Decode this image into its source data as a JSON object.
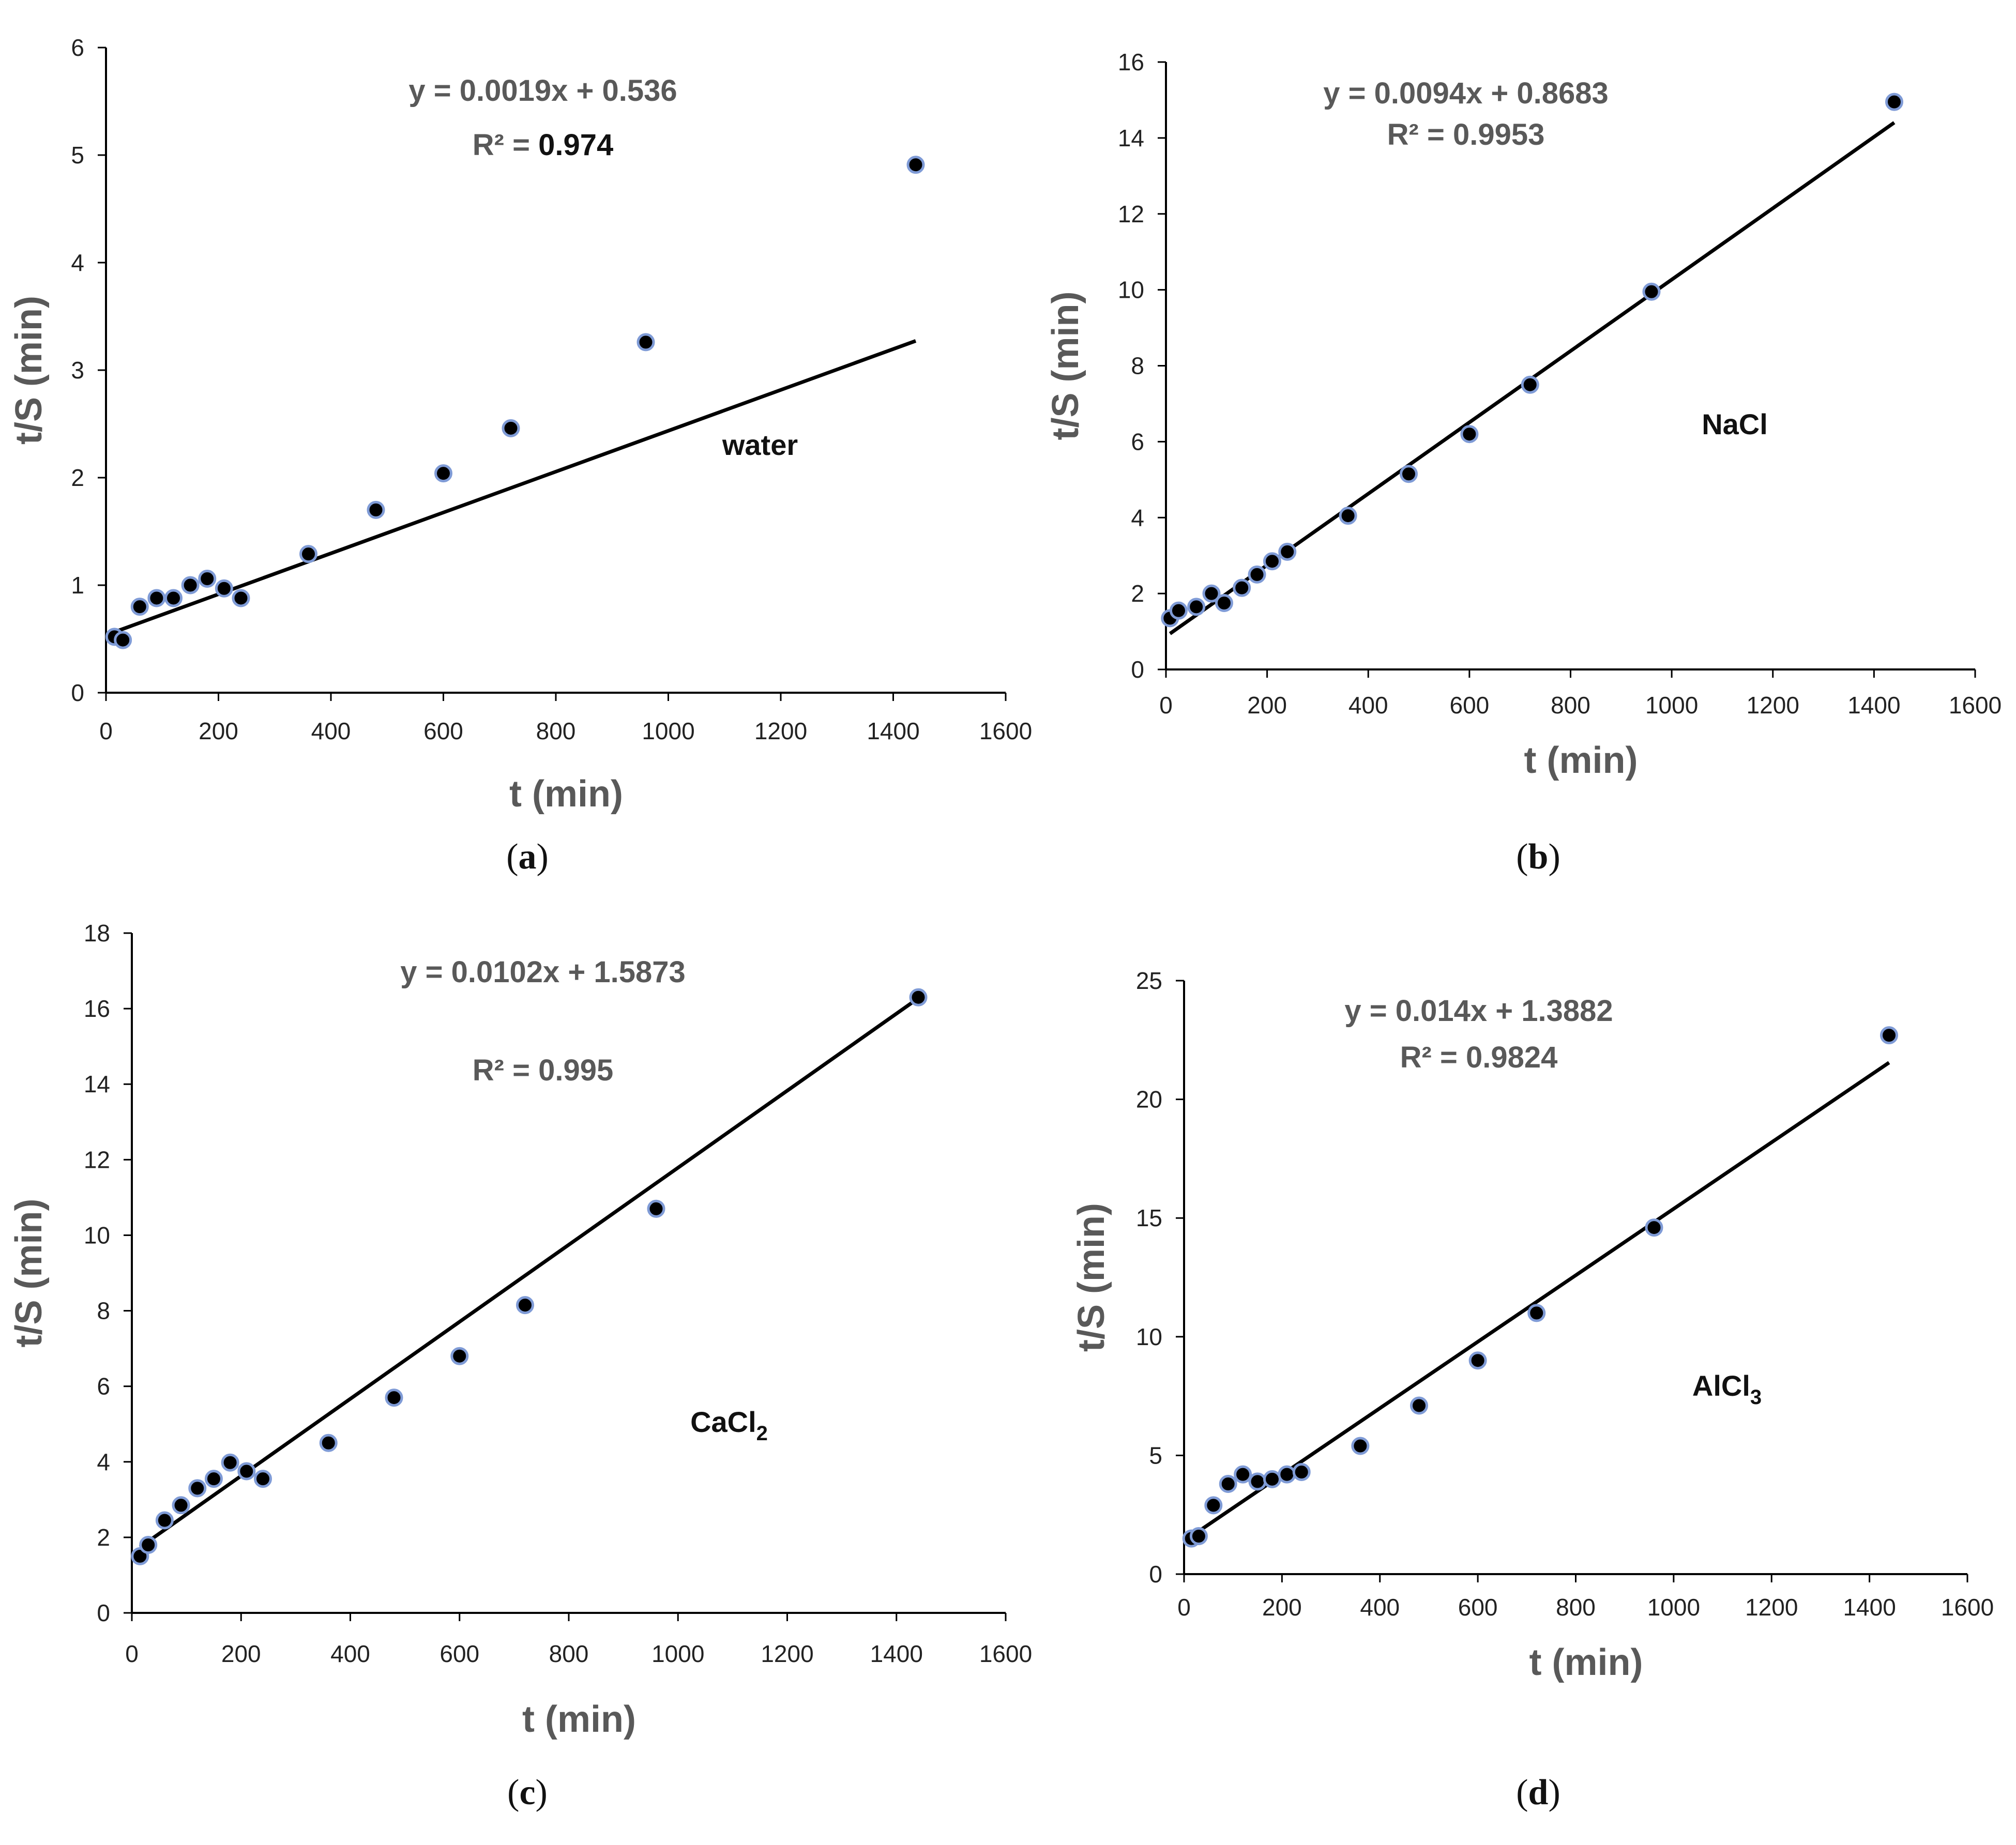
{
  "figure": {
    "colors": {
      "axis": "#000000",
      "point_fill": "#000000",
      "point_edge": "#7f9bd6",
      "fit_line": "#000000",
      "label_gray": "#595959"
    }
  },
  "chart_data": [
    {
      "type": "scatter",
      "id": "a",
      "caption_letter": "a",
      "series_label": "water",
      "equation": "y = 0.0019x + 0.536",
      "r2_label": "R² = ",
      "r2_value": "0.974",
      "xlabel": "t (min)",
      "ylabel": "t/S (min)",
      "xlim": [
        0,
        1600
      ],
      "ylim": [
        0,
        6
      ],
      "xticks": [
        0,
        200,
        400,
        600,
        800,
        1000,
        1200,
        1400,
        1600
      ],
      "yticks": [
        0,
        1,
        2,
        3,
        4,
        5,
        6
      ],
      "x": [
        15,
        30,
        60,
        90,
        120,
        150,
        180,
        210,
        240,
        360,
        480,
        600,
        720,
        960,
        1440
      ],
      "y": [
        0.52,
        0.49,
        0.8,
        0.88,
        0.88,
        1.0,
        1.06,
        0.97,
        0.88,
        1.29,
        1.7,
        2.04,
        2.46,
        3.26,
        4.91
      ],
      "fit": {
        "slope": 0.0019,
        "intercept": 0.536,
        "x_range": [
          15,
          1440
        ]
      }
    },
    {
      "type": "scatter",
      "id": "b",
      "caption_letter": "b",
      "series_label": "NaCl",
      "equation": "y = 0.0094x + 0.8683",
      "r2_label": "R² = ",
      "r2_value": "0.9953",
      "xlabel": "t (min)",
      "ylabel": "t/S (min)",
      "xlim": [
        0,
        1600
      ],
      "ylim": [
        0,
        16
      ],
      "xticks": [
        0,
        200,
        400,
        600,
        800,
        1000,
        1200,
        1400,
        1600
      ],
      "yticks": [
        0,
        2,
        4,
        6,
        8,
        10,
        12,
        14,
        16
      ],
      "x": [
        8,
        25,
        60,
        90,
        115,
        150,
        180,
        210,
        240,
        360,
        480,
        600,
        720,
        960,
        1440
      ],
      "y": [
        1.35,
        1.55,
        1.65,
        2.0,
        1.75,
        2.15,
        2.5,
        2.85,
        3.1,
        4.05,
        5.15,
        6.2,
        7.5,
        9.95,
        14.95
      ],
      "fit": {
        "slope": 0.0094,
        "intercept": 0.8683,
        "x_range": [
          8,
          1440
        ]
      }
    },
    {
      "type": "scatter",
      "id": "c",
      "caption_letter": "c",
      "series_label": "CaCl",
      "series_label_sub": "2",
      "equation": "y = 0.0102x + 1.5873",
      "r2_label": "R² = ",
      "r2_value": "0.995",
      "xlabel": "t (min)",
      "ylabel": "t/S (min)",
      "xlim": [
        0,
        1600
      ],
      "ylim": [
        0,
        18
      ],
      "xticks": [
        0,
        200,
        400,
        600,
        800,
        1000,
        1200,
        1400,
        1600
      ],
      "yticks": [
        0,
        2,
        4,
        6,
        8,
        10,
        12,
        14,
        16,
        18
      ],
      "x": [
        15,
        30,
        60,
        90,
        120,
        150,
        180,
        210,
        240,
        360,
        480,
        600,
        720,
        960,
        1440
      ],
      "y": [
        1.5,
        1.8,
        2.45,
        2.85,
        3.3,
        3.55,
        3.98,
        3.75,
        3.55,
        4.5,
        5.7,
        6.8,
        8.15,
        10.7,
        16.3
      ],
      "fit": {
        "slope": 0.0102,
        "intercept": 1.5873,
        "x_range": [
          15,
          1440
        ]
      }
    },
    {
      "type": "scatter",
      "id": "d",
      "caption_letter": "d",
      "series_label": "AlCl",
      "series_label_sub": "3",
      "equation": "y = 0.014x + 1.3882",
      "r2_label": "R² = ",
      "r2_value": "0.9824",
      "xlabel": "t (min)",
      "ylabel": "t/S (min)",
      "xlim": [
        0,
        1600
      ],
      "ylim": [
        0,
        25
      ],
      "xticks": [
        0,
        200,
        400,
        600,
        800,
        1000,
        1200,
        1400,
        1600
      ],
      "yticks": [
        0,
        5,
        10,
        15,
        20,
        25
      ],
      "x": [
        15,
        30,
        60,
        90,
        120,
        150,
        180,
        210,
        240,
        360,
        480,
        600,
        720,
        960,
        1440
      ],
      "y": [
        1.5,
        1.6,
        2.9,
        3.8,
        4.2,
        3.9,
        4.0,
        4.2,
        4.3,
        5.4,
        7.1,
        9.0,
        11.0,
        14.6,
        22.7
      ],
      "fit": {
        "slope": 0.014,
        "intercept": 1.3882,
        "x_range": [
          15,
          1440
        ]
      }
    }
  ]
}
